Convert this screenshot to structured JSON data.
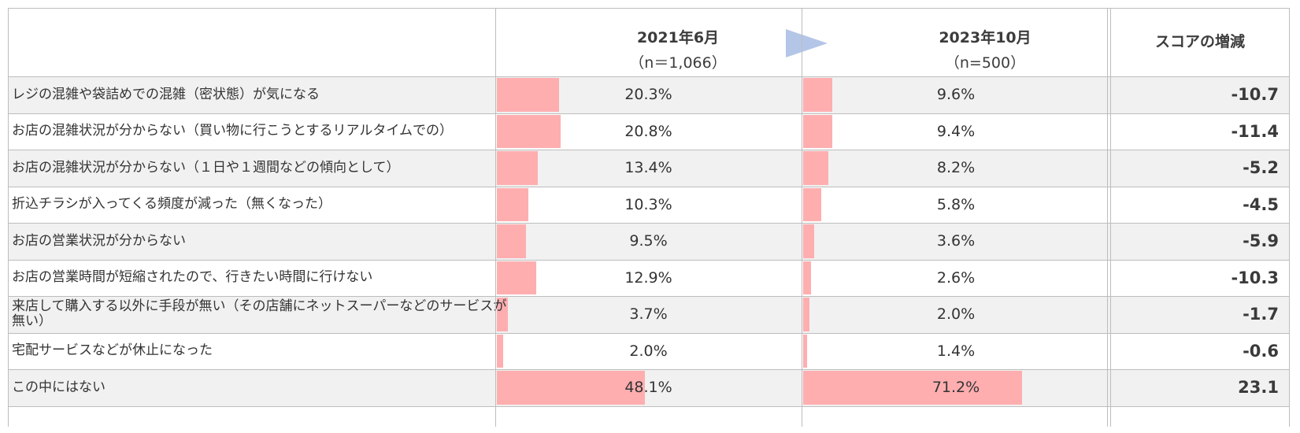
{
  "colors": {
    "bar": "#ffaeb0",
    "row_alt": "#f1f1f1",
    "row_plain": "#ffffff",
    "arrow": "#b4c6e7",
    "grid": "#bdbdbd"
  },
  "header": {
    "period1_title": "2021年6月",
    "period1_n": "（n＝1,066）",
    "period2_title": "2023年10月",
    "period2_n": "（n=500）",
    "diff_title": "スコアの増減"
  },
  "chart_data": {
    "type": "table",
    "value_unit": "%",
    "xlim": [
      0,
      100
    ],
    "series": [
      {
        "name": "2021年6月",
        "values": [
          20.3,
          20.8,
          13.4,
          10.3,
          9.5,
          12.9,
          3.7,
          2.0,
          48.1
        ]
      },
      {
        "name": "2023年10月",
        "values": [
          9.6,
          9.4,
          8.2,
          5.8,
          3.6,
          2.6,
          2.0,
          1.4,
          71.2
        ]
      }
    ],
    "rows": [
      {
        "label": "レジの混雑や袋詰めでの混雑（密状態）が気になる",
        "v1": 20.3,
        "t1": "20.3%",
        "v2": 9.6,
        "t2": "9.6%",
        "diff": "-10.7"
      },
      {
        "label": "お店の混雑状況が分からない（買い物に行こうとするリアルタイムでの）",
        "v1": 20.8,
        "t1": "20.8%",
        "v2": 9.4,
        "t2": "9.4%",
        "diff": "-11.4"
      },
      {
        "label": "お店の混雑状況が分からない（１日や１週間などの傾向として）",
        "v1": 13.4,
        "t1": "13.4%",
        "v2": 8.2,
        "t2": "8.2%",
        "diff": "-5.2"
      },
      {
        "label": "折込チラシが入ってくる頻度が減った（無くなった）",
        "v1": 10.3,
        "t1": "10.3%",
        "v2": 5.8,
        "t2": "5.8%",
        "diff": "-4.5"
      },
      {
        "label": "お店の営業状況が分からない",
        "v1": 9.5,
        "t1": "9.5%",
        "v2": 3.6,
        "t2": "3.6%",
        "diff": "-5.9"
      },
      {
        "label": "お店の営業時間が短縮されたので、行きたい時間に行けない",
        "v1": 12.9,
        "t1": "12.9%",
        "v2": 2.6,
        "t2": "2.6%",
        "diff": "-10.3"
      },
      {
        "label": "来店して購入する以外に手段が無い（その店舗にネットスーパーなどのサービスが無い）",
        "v1": 3.7,
        "t1": "3.7%",
        "v2": 2.0,
        "t2": "2.0%",
        "diff": "-1.7"
      },
      {
        "label": "宅配サービスなどが休止になった",
        "v1": 2.0,
        "t1": "2.0%",
        "v2": 1.4,
        "t2": "1.4%",
        "diff": "-0.6"
      },
      {
        "label": "この中にはない",
        "v1": 48.1,
        "t1": "48.1%",
        "v2": 71.2,
        "t2": "71.2%",
        "diff": "23.1"
      }
    ]
  }
}
